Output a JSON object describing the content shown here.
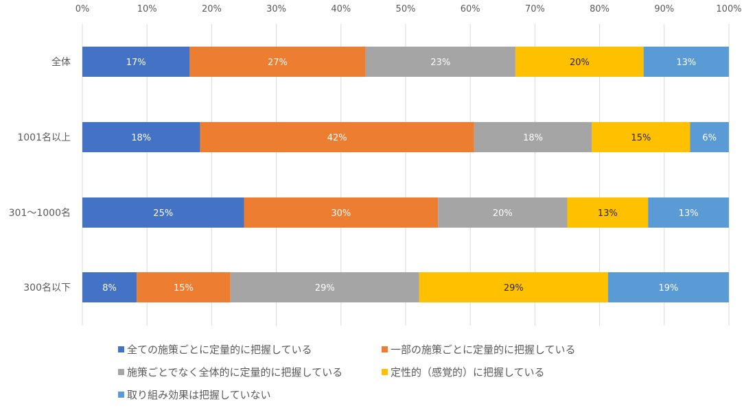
{
  "chart_data": {
    "type": "bar",
    "orientation": "horizontal",
    "stacked": true,
    "xlim": [
      0,
      100
    ],
    "x_ticks": [
      "0%",
      "10%",
      "20%",
      "30%",
      "40%",
      "50%",
      "60%",
      "70%",
      "80%",
      "90%",
      "100%"
    ],
    "grid": true,
    "legend_placement": "bottom",
    "categories": [
      "全体",
      "1001名以上",
      "301～1000名",
      "300名以下"
    ],
    "series": [
      {
        "name": "全ての施策ごとに定量的に把握している",
        "color": "#4472C4",
        "values": [
          16.6,
          18.2,
          25.0,
          8.4
        ],
        "labels": [
          "17%",
          "18%",
          "25%",
          "8%"
        ]
      },
      {
        "name": "一部の施策ごとに定量的に把握している",
        "color": "#ED7D31",
        "values": [
          27.2,
          42.4,
          30.0,
          14.5
        ],
        "labels": [
          "27%",
          "42%",
          "30%",
          "15%"
        ]
      },
      {
        "name": "施策ごとでなく全体的に定量的に把握している",
        "color": "#A5A5A5",
        "values": [
          23.2,
          18.2,
          20.0,
          29.2
        ],
        "labels": [
          "23%",
          "18%",
          "20%",
          "29%"
        ]
      },
      {
        "name": "定性的（感覚的）に把握している",
        "color": "#FFC000",
        "values": [
          19.8,
          15.2,
          12.5,
          29.2
        ],
        "labels": [
          "20%",
          "15%",
          "13%",
          "29%"
        ]
      },
      {
        "name": "取り組み効果は把握していない",
        "color": "#5B9BD5",
        "values": [
          13.2,
          6.0,
          12.5,
          18.7
        ],
        "labels": [
          "13%",
          "6%",
          "13%",
          "19%"
        ]
      }
    ]
  }
}
